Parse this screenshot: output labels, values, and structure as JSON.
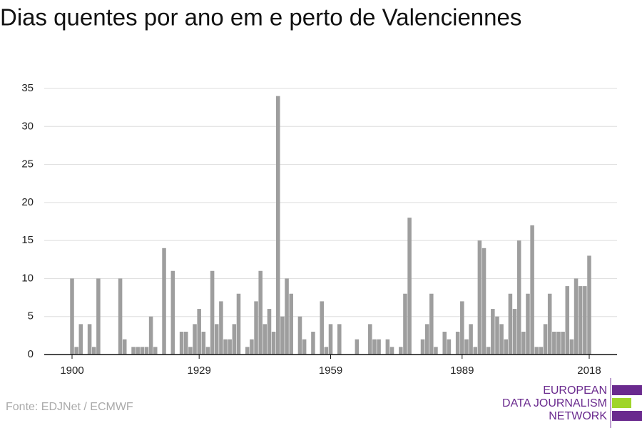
{
  "chart_data": {
    "type": "bar",
    "title": "Dias quentes por ano em e perto de Valenciennes",
    "source": "Fonte: EDJNet / ECMWF",
    "logo": [
      "EUROPEAN",
      "DATA JOURNALISM",
      "NETWORK"
    ],
    "color": "#9e9e9e",
    "x": [
      1900,
      1901,
      1902,
      1903,
      1904,
      1905,
      1906,
      1907,
      1908,
      1909,
      1910,
      1911,
      1912,
      1913,
      1914,
      1915,
      1916,
      1917,
      1918,
      1919,
      1920,
      1921,
      1922,
      1923,
      1924,
      1925,
      1926,
      1927,
      1928,
      1929,
      1930,
      1931,
      1932,
      1933,
      1934,
      1935,
      1936,
      1937,
      1938,
      1939,
      1940,
      1941,
      1942,
      1943,
      1944,
      1945,
      1946,
      1947,
      1948,
      1949,
      1950,
      1951,
      1952,
      1953,
      1954,
      1955,
      1956,
      1957,
      1958,
      1959,
      1960,
      1961,
      1962,
      1963,
      1964,
      1965,
      1966,
      1967,
      1968,
      1969,
      1970,
      1971,
      1972,
      1973,
      1974,
      1975,
      1976,
      1977,
      1978,
      1979,
      1980,
      1981,
      1982,
      1983,
      1984,
      1985,
      1986,
      1987,
      1988,
      1989,
      1990,
      1991,
      1992,
      1993,
      1994,
      1995,
      1996,
      1997,
      1998,
      1999,
      2000,
      2001,
      2002,
      2003,
      2004,
      2005,
      2006,
      2007,
      2008,
      2009,
      2010,
      2011,
      2012,
      2013,
      2014,
      2015,
      2016,
      2017,
      2018
    ],
    "values": [
      10,
      1,
      4,
      0,
      4,
      1,
      10,
      0,
      0,
      0,
      0,
      10,
      2,
      0,
      1,
      1,
      1,
      1,
      5,
      1,
      0,
      14,
      0,
      11,
      0,
      3,
      3,
      1,
      4,
      6,
      3,
      1,
      11,
      4,
      7,
      2,
      2,
      4,
      8,
      0,
      1,
      2,
      7,
      11,
      4,
      6,
      3,
      34,
      5,
      10,
      8,
      0,
      5,
      2,
      0,
      3,
      0,
      7,
      1,
      4,
      0,
      4,
      0,
      0,
      0,
      2,
      0,
      0,
      4,
      2,
      2,
      0,
      2,
      1,
      0,
      1,
      8,
      18,
      0,
      0,
      2,
      4,
      8,
      1,
      0,
      3,
      2,
      0,
      3,
      7,
      2,
      4,
      1,
      15,
      14,
      1,
      6,
      5,
      4,
      2,
      8,
      6,
      15,
      3,
      8,
      17,
      1,
      1,
      4,
      8,
      3,
      3,
      3,
      9,
      2,
      10,
      9,
      9,
      13
    ],
    "xlim": [
      1893.65,
      2024.35
    ],
    "xticks": [
      1900,
      1929,
      1959,
      1989,
      2018
    ],
    "ylim": [
      0,
      35
    ],
    "yticks": [
      0,
      5,
      10,
      15,
      20,
      25,
      30,
      35
    ],
    "grid": true
  }
}
